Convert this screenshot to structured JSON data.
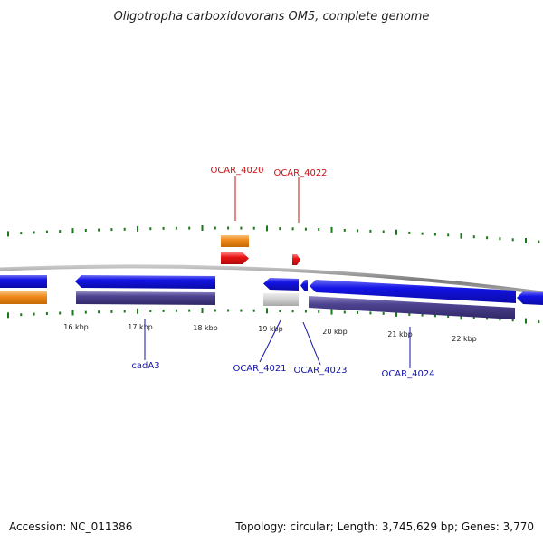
{
  "title": "Oligotropha carboxidovorans OM5, complete genome",
  "footer": {
    "accession": "Accession: NC_011386",
    "summary": "Topology: circular; Length: 3,745,629 bp; Genes: 3,770"
  },
  "scale_labels": [
    "16 kbp",
    "17 kbp",
    "18 kbp",
    "19 kbp",
    "20 kbp",
    "21 kbp",
    "22 kbp"
  ],
  "gene_labels": {
    "ocar_4020": "OCAR_4020",
    "ocar_4022": "OCAR_4022",
    "cada3": "cadA3",
    "ocar_4021": "OCAR_4021",
    "ocar_4023": "OCAR_4023",
    "ocar_4024": "OCAR_4024"
  },
  "colors": {
    "backbone": "#8c8c8c",
    "cds_blue": "#1010e0",
    "cds_purple": "#4a3f8c",
    "orange": "#ef8a1a",
    "red": "#e01010",
    "grey_feature": "#c8c8c8",
    "ticks": "#1a7a1a",
    "label_red": "#cc1111",
    "label_blue": "#1111aa"
  }
}
